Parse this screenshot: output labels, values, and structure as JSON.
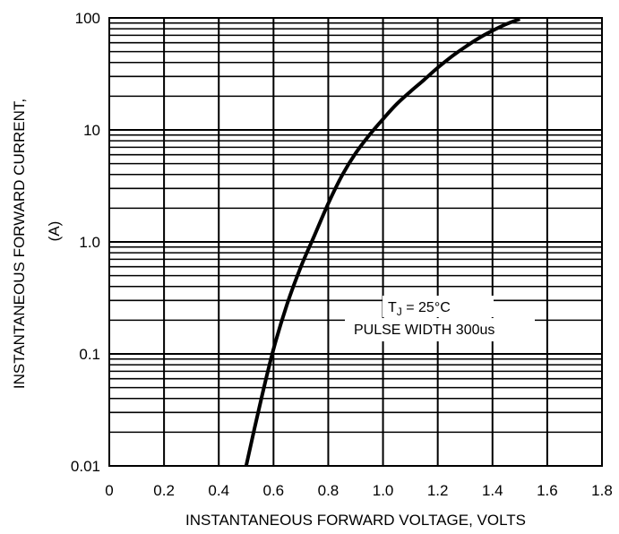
{
  "chart_data": {
    "type": "line",
    "title": "",
    "xlabel": "INSTANTANEOUS FORWARD VOLTAGE, VOLTS",
    "ylabel_line1": "INSTANTANEOUS FORWARD CURRENT,",
    "ylabel_line2": "(A)",
    "x_scale": "linear",
    "y_scale": "log",
    "xlim": [
      0,
      1.8
    ],
    "ylim": [
      0.01,
      100
    ],
    "x_ticks": [
      0,
      0.2,
      0.4,
      0.6,
      0.8,
      1.0,
      1.2,
      1.4,
      1.6,
      1.8
    ],
    "x_tick_labels": [
      "0",
      "0.2",
      "0.4",
      "0.6",
      "0.8",
      "1.0",
      "1.2",
      "1.4",
      "1.6",
      "1.8"
    ],
    "y_ticks": [
      0.01,
      0.1,
      1.0,
      10,
      100
    ],
    "y_tick_labels": [
      "0.01",
      "0.1",
      "1.0",
      "10",
      "100"
    ],
    "grid": true,
    "annotation": {
      "tj_symbol": "T",
      "tj_subscript": "J",
      "tj_rest": " = 25°C",
      "pulse": "PULSE WIDTH 300us"
    },
    "series": [
      {
        "x": [
          0.5,
          0.55,
          0.6,
          0.65,
          0.7,
          0.75,
          0.8,
          0.85,
          0.9,
          0.95,
          1.0,
          1.05,
          1.1,
          1.15,
          1.2,
          1.25,
          1.3,
          1.35,
          1.4,
          1.45,
          1.5
        ],
        "y": [
          0.01,
          0.035,
          0.11,
          0.28,
          0.6,
          1.15,
          2.2,
          3.9,
          6.2,
          9.0,
          12.5,
          17,
          22,
          28,
          36,
          45,
          55,
          66,
          77,
          88,
          98
        ]
      }
    ]
  }
}
